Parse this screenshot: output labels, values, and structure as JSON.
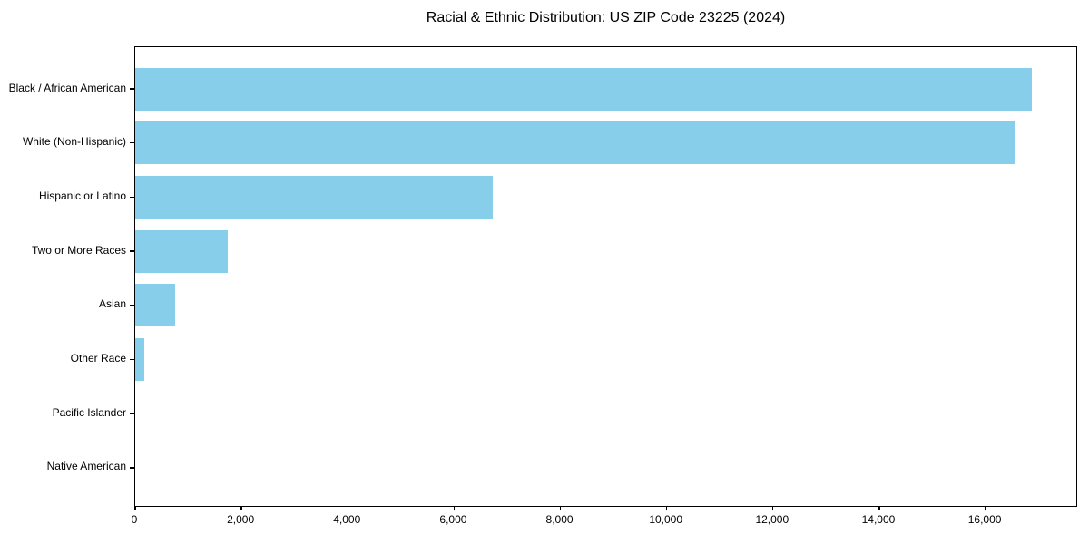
{
  "page": {
    "background_color": "#ffffff"
  },
  "chart_data": {
    "type": "bar",
    "orientation": "horizontal",
    "title": "Racial & Ethnic Distribution: US ZIP Code 23225 (2024)",
    "categories": [
      "Black / African American",
      "White (Non-Hispanic)",
      "Hispanic or Latino",
      "Two or More Races",
      "Asian",
      "Other Race",
      "Pacific Islander",
      "Native American"
    ],
    "values": [
      16870,
      16560,
      6730,
      1740,
      750,
      170,
      0,
      0
    ],
    "bar_color": "#87CEEB",
    "axis_color": "#000000",
    "text_color": "#000000",
    "xlabel": "",
    "ylabel": "",
    "xlim": [
      0,
      17740
    ],
    "xticks": [
      0,
      2000,
      4000,
      6000,
      8000,
      10000,
      12000,
      14000,
      16000
    ],
    "xtick_labels": [
      "0",
      "2,000",
      "4,000",
      "6,000",
      "8,000",
      "10,000",
      "12,000",
      "14,000",
      "16,000"
    ],
    "grid": false,
    "legend": "none"
  }
}
